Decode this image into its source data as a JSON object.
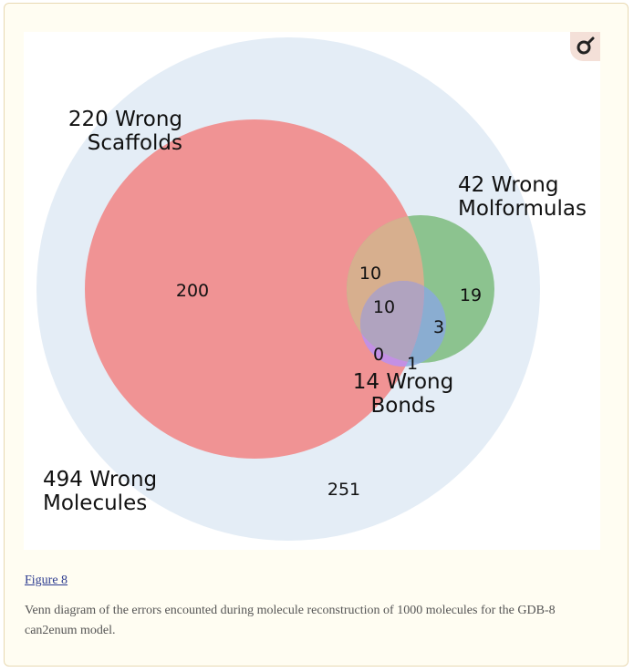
{
  "figure": {
    "link_label": "Figure 8",
    "caption": "Venn diagram of the errors encounted during molecule reconstruction of 1000 molecules for the GDB-8 can2enum model.",
    "zoom_icon": "magnifier-icon"
  },
  "venn": {
    "sets": [
      {
        "id": "molecules",
        "label_line1": "494 Wrong",
        "label_line2": "Molecules",
        "color": "#dce8f4"
      },
      {
        "id": "scaffolds",
        "label_line1": "220 Wrong",
        "label_line2": "Scaffolds",
        "color": "#ef8484"
      },
      {
        "id": "molformulas",
        "label_line1": "42 Wrong",
        "label_line2": "Molformulas",
        "color": "#7fbf86"
      },
      {
        "id": "bonds",
        "label_line1": "14 Wrong",
        "label_line2": "Bonds",
        "color": "#8aa8e0"
      }
    ],
    "region_counts": {
      "molecules_only": "251",
      "scaffolds_only": "200",
      "scaffolds_molformulas": "10",
      "scaffolds_molformulas_bonds": "10",
      "molformulas_only": "19",
      "molformulas_bonds": "3",
      "scaffolds_bonds": "0",
      "bonds_only": "1"
    }
  }
}
